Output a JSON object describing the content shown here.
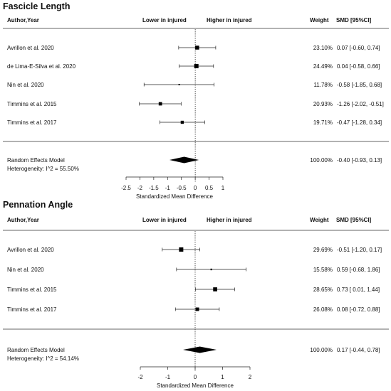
{
  "chart_data": [
    {
      "type": "forest",
      "title": "Fascicle Length",
      "headers": {
        "study": "Author,Year",
        "lower": "Lower in injured",
        "higher": "Higher in injured",
        "weight": "Weight",
        "smd": "SMD [95%CI]"
      },
      "studies": [
        {
          "label": "Avrillon et al. 2020",
          "weight": "23.10%",
          "smd": 0.07,
          "lo": -0.6,
          "hi": 0.74,
          "ci_text": "0.07 [-0.60,  0.74]"
        },
        {
          "label": "de Lima-E-Silva et al. 2020",
          "weight": "24.49%",
          "smd": 0.04,
          "lo": -0.58,
          "hi": 0.66,
          "ci_text": "0.04 [-0.58,  0.66]"
        },
        {
          "label": "Nin et al. 2020",
          "weight": "11.78%",
          "smd": -0.58,
          "lo": -1.85,
          "hi": 0.68,
          "ci_text": "-0.58 [-1.85,  0.68]"
        },
        {
          "label": "Timmins et al. 2015",
          "weight": "20.93%",
          "smd": -1.26,
          "lo": -2.02,
          "hi": -0.51,
          "ci_text": "-1.26 [-2.02, -0.51]"
        },
        {
          "label": "Timmins et al. 2017",
          "weight": "19.71%",
          "smd": -0.47,
          "lo": -1.28,
          "hi": 0.34,
          "ci_text": "-0.47 [-1.28,  0.34]"
        }
      ],
      "summary": {
        "label": "Random Effects Model",
        "weight": "100.00%",
        "smd": -0.4,
        "lo": -0.93,
        "hi": 0.13,
        "ci_text": "-0.40 [-0.93,  0.13]"
      },
      "heterogeneity": "Heterogeneity: I^2 = 55.50%",
      "xlim": [
        -2.5,
        1
      ],
      "ticks": [
        -2.5,
        -2,
        -1.5,
        -1,
        -0.5,
        0,
        0.5,
        1
      ],
      "tick_labels": [
        "-2.5",
        "-2",
        "-1.5",
        "-1",
        "-0.5",
        "0",
        "0.5",
        "1"
      ],
      "xlabel": "Standardized Mean Difference"
    },
    {
      "type": "forest",
      "title": "Pennation Angle",
      "headers": {
        "study": "Author,Year",
        "lower": "Lower in injured",
        "higher": "Higher in injured",
        "weight": "Weight",
        "smd": "SMD [95%CI]"
      },
      "studies": [
        {
          "label": "Avrillon et al. 2020",
          "weight": "29.69%",
          "smd": -0.51,
          "lo": -1.2,
          "hi": 0.17,
          "ci_text": "-0.51 [-1.20, 0.17]"
        },
        {
          "label": "Nin et al. 2020",
          "weight": "15.58%",
          "smd": 0.59,
          "lo": -0.68,
          "hi": 1.86,
          "ci_text": "0.59 [-0.68, 1.86]"
        },
        {
          "label": "Timmins et al. 2015",
          "weight": "28.65%",
          "smd": 0.73,
          "lo": 0.01,
          "hi": 1.44,
          "ci_text": "0.73 [ 0.01, 1.44]"
        },
        {
          "label": "Timmins et al. 2017",
          "weight": "26.08%",
          "smd": 0.08,
          "lo": -0.72,
          "hi": 0.88,
          "ci_text": "0.08 [-0.72, 0.88]"
        }
      ],
      "summary": {
        "label": "Random Effects Model",
        "weight": "100.00%",
        "smd": 0.17,
        "lo": -0.44,
        "hi": 0.78,
        "ci_text": "0.17 [-0.44, 0.78]"
      },
      "heterogeneity": "Heterogeneity: I^2 = 54.14%",
      "xlim": [
        -2,
        2
      ],
      "ticks": [
        -2,
        -1,
        0,
        1,
        2
      ],
      "tick_labels": [
        "-2",
        "-1",
        "0",
        "1",
        "2"
      ],
      "xlabel": "Standardized Mean Difference"
    }
  ]
}
